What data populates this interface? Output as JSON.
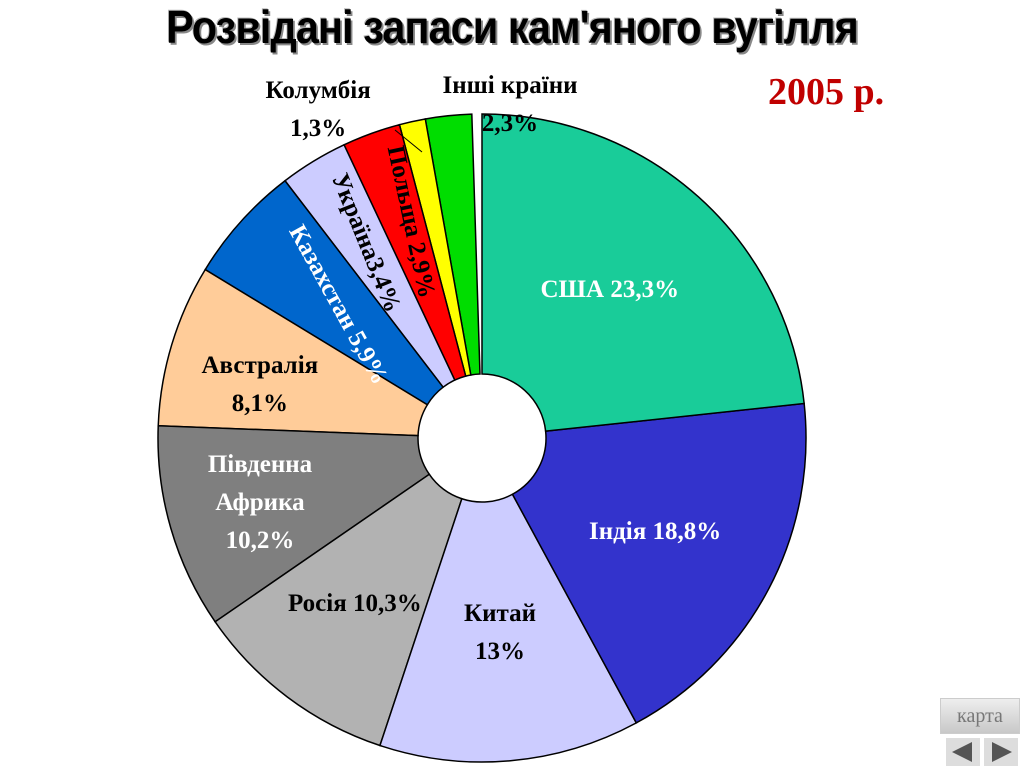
{
  "chart_data": {
    "type": "pie",
    "title": "Розвідані запаси кам'яного вугілля",
    "subtitle": "2005 р.",
    "categories": [
      "США",
      "Індія",
      "Китай",
      "Росія",
      "Південна Африка",
      "Австралія",
      "Казахстан",
      "Україна",
      "Польща",
      "Колумбія",
      "Інші країни"
    ],
    "values": [
      23.3,
      18.8,
      13,
      10.3,
      10.2,
      8.1,
      5.9,
      3.4,
      2.9,
      1.3,
      2.3
    ],
    "value_labels": [
      "23,3%",
      "18,8%",
      "13%",
      "10,3%",
      "10,2%",
      "8,1%",
      "5,9%",
      "3,4%",
      "2,9%",
      "1,3%",
      "2,3%"
    ],
    "colors": [
      "#19cc99",
      "#3333cc",
      "#ccccff",
      "#b2b2b2",
      "#7f7f7f",
      "#ffcc99",
      "#0066cc",
      "#ccccff",
      "#ff0000",
      "#ffff00",
      "#00dd00"
    ]
  },
  "nav": {
    "map_button": "карта"
  }
}
